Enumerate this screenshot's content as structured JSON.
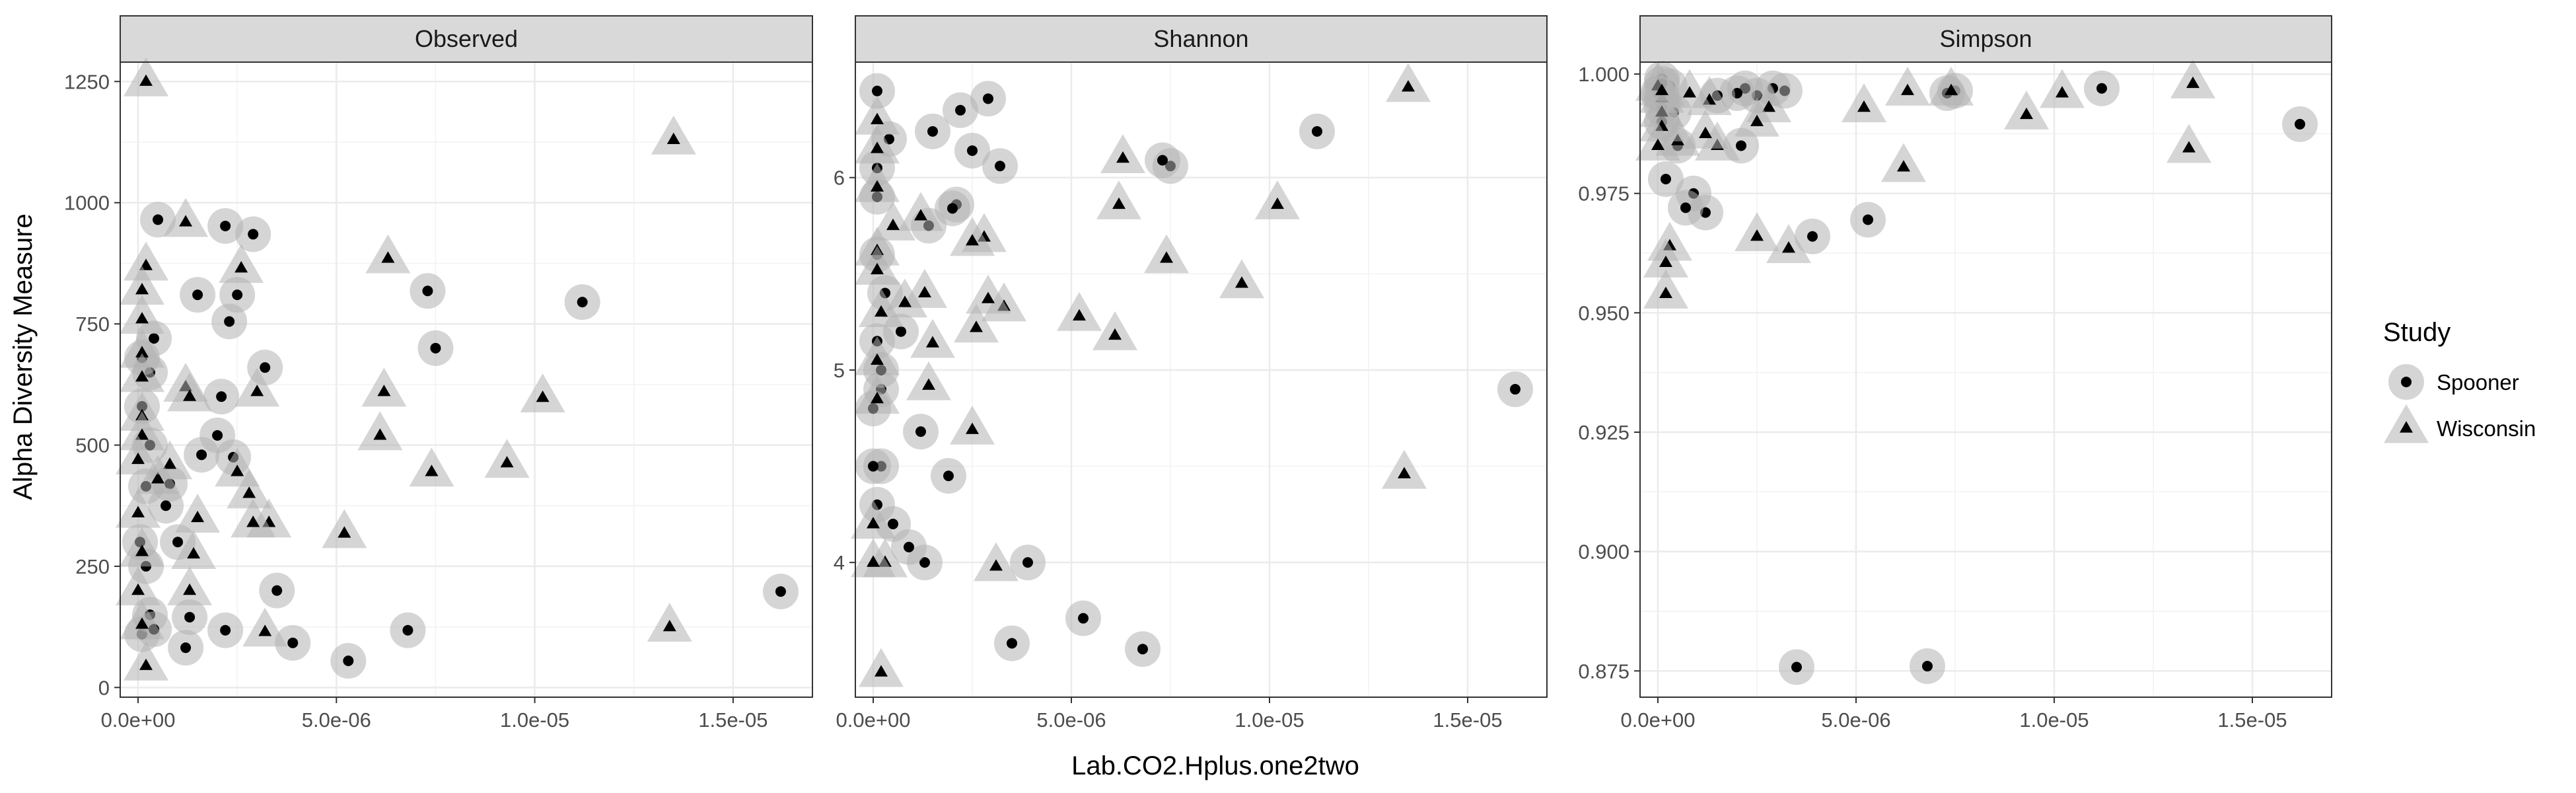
{
  "chart_data": {
    "type": "scatter",
    "facets": [
      "Observed",
      "Shannon",
      "Simpson"
    ],
    "xlabel": "Lab.CO2.Hplus.one2two",
    "ylabel": "Alpha Diversity Measure",
    "xlim": [
      -4.5e-07,
      1.7e-05
    ],
    "x_ticks": [
      0,
      5e-06,
      1e-05,
      1.5e-05
    ],
    "x_tick_labels": [
      "0.0e+00",
      "5.0e-06",
      "1.0e-05",
      "1.5e-05"
    ],
    "grid": true,
    "legend": {
      "title": "Study",
      "position": "right",
      "entries": [
        {
          "name": "Spooner",
          "shape": "circle"
        },
        {
          "name": "Wisconsin",
          "shape": "triangle"
        }
      ]
    },
    "colors": {
      "marker_halo": "#b3b3b3",
      "marker_core": "#000000",
      "strip_fill": "#d9d9d9",
      "grid_major": "#ebebeb",
      "panel_border": "#333333"
    },
    "panels": [
      {
        "facet": "Observed",
        "ylim": [
          -20,
          1290
        ],
        "y_ticks": [
          0,
          250,
          500,
          750,
          1000,
          1250
        ],
        "y_tick_labels": [
          "0",
          "250",
          "500",
          "750",
          "1000",
          "1250"
        ],
        "series": [
          {
            "name": "Spooner",
            "points": [
              [
                1.62e-05,
                198
              ],
              [
                1.12e-05,
                795
              ],
              [
                7.5e-06,
                700
              ],
              [
                7.3e-06,
                818
              ],
              [
                6.8e-06,
                118
              ],
              [
                5.3e-06,
                55
              ],
              [
                3.9e-06,
                92
              ],
              [
                3.5e-06,
                200
              ],
              [
                3.2e-06,
                660
              ],
              [
                2.9e-06,
                935
              ],
              [
                2.5e-06,
                810
              ],
              [
                2.2e-06,
                952
              ],
              [
                2.3e-06,
                755
              ],
              [
                2.1e-06,
                600
              ],
              [
                2e-06,
                520
              ],
              [
                2.2e-06,
                118
              ],
              [
                2.4e-06,
                475
              ],
              [
                1.5e-06,
                810
              ],
              [
                1.6e-06,
                480
              ],
              [
                1.3e-06,
                145
              ],
              [
                1.2e-06,
                82
              ],
              [
                1e-06,
                300
              ],
              [
                5e-07,
                965
              ],
              [
                8e-07,
                420
              ],
              [
                7e-07,
                375
              ],
              [
                4e-07,
                720
              ],
              [
                3e-07,
                650
              ],
              [
                3e-07,
                500
              ],
              [
                2e-07,
                250
              ],
              [
                1e-07,
                110
              ],
              [
                3e-07,
                150
              ],
              [
                4e-07,
                120
              ],
              [
                2e-07,
                415
              ],
              [
                1e-07,
                580
              ],
              [
                1e-07,
                680
              ],
              [
                5e-08,
                300
              ]
            ]
          },
          {
            "name": "Wisconsin",
            "points": [
              [
                1.35e-05,
                1130
              ],
              [
                1.34e-05,
                125
              ],
              [
                1.02e-05,
                598
              ],
              [
                9.3e-06,
                463
              ],
              [
                7.4e-06,
                445
              ],
              [
                6.3e-06,
                885
              ],
              [
                6.2e-06,
                610
              ],
              [
                6.1e-06,
                520
              ],
              [
                5.2e-06,
                318
              ],
              [
                3.3e-06,
                340
              ],
              [
                3e-06,
                610
              ],
              [
                3.2e-06,
                115
              ],
              [
                2.9e-06,
                340
              ],
              [
                2.8e-06,
                400
              ],
              [
                2.6e-06,
                865
              ],
              [
                2.5e-06,
                445
              ],
              [
                1.2e-06,
                960
              ],
              [
                1.5e-06,
                350
              ],
              [
                1.2e-06,
                620
              ],
              [
                1.3e-06,
                600
              ],
              [
                1.3e-06,
                200
              ],
              [
                1.4e-06,
                275
              ],
              [
                8e-07,
                460
              ],
              [
                5e-07,
                430
              ],
              [
                2e-07,
                1250
              ],
              [
                2e-07,
                45
              ],
              [
                2e-07,
                870
              ],
              [
                1e-07,
                820
              ],
              [
                1e-07,
                760
              ],
              [
                1e-07,
                690
              ],
              [
                1e-07,
                640
              ],
              [
                1e-07,
                560
              ],
              [
                1e-07,
                520
              ],
              [
                0,
                470
              ],
              [
                0,
                360
              ],
              [
                1e-07,
                280
              ],
              [
                0,
                200
              ],
              [
                1e-07,
                130
              ]
            ]
          }
        ]
      },
      {
        "facet": "Shannon",
        "ylim": [
          3.3,
          6.6
        ],
        "y_ticks": [
          4,
          5,
          6
        ],
        "y_tick_labels": [
          "4",
          "5",
          "6"
        ],
        "series": [
          {
            "name": "Spooner",
            "points": [
              [
                1.62e-05,
                4.9
              ],
              [
                1.12e-05,
                6.24
              ],
              [
                7.5e-06,
                6.06
              ],
              [
                7.3e-06,
                6.09
              ],
              [
                6.8e-06,
                3.55
              ],
              [
                5.3e-06,
                3.71
              ],
              [
                3.9e-06,
                4.0
              ],
              [
                3.5e-06,
                3.58
              ],
              [
                3.2e-06,
                6.06
              ],
              [
                2.9e-06,
                6.41
              ],
              [
                2.5e-06,
                6.14
              ],
              [
                2.2e-06,
                6.35
              ],
              [
                2.1e-06,
                5.86
              ],
              [
                2e-06,
                5.84
              ],
              [
                1.9e-06,
                4.45
              ],
              [
                1.5e-06,
                6.24
              ],
              [
                1.4e-06,
                5.75
              ],
              [
                1.3e-06,
                4.0
              ],
              [
                1.2e-06,
                4.68
              ],
              [
                9e-07,
                4.08
              ],
              [
                7e-07,
                5.2
              ],
              [
                5e-07,
                4.2
              ],
              [
                4e-07,
                6.2
              ],
              [
                3e-07,
                5.4
              ],
              [
                2e-07,
                4.5
              ],
              [
                2e-07,
                4.9
              ],
              [
                1e-07,
                6.45
              ],
              [
                1e-07,
                5.9
              ],
              [
                1e-07,
                5.6
              ],
              [
                1e-07,
                5.15
              ],
              [
                1e-07,
                4.3
              ],
              [
                0,
                4.8
              ],
              [
                0,
                4.5
              ],
              [
                1e-07,
                6.05
              ],
              [
                2e-07,
                5.0
              ]
            ]
          },
          {
            "name": "Wisconsin",
            "points": [
              [
                1.35e-05,
                6.47
              ],
              [
                1.34e-05,
                4.46
              ],
              [
                1.02e-05,
                5.86
              ],
              [
                9.3e-06,
                5.45
              ],
              [
                7.4e-06,
                5.58
              ],
              [
                6.3e-06,
                6.1
              ],
              [
                6.2e-06,
                5.86
              ],
              [
                6.1e-06,
                5.18
              ],
              [
                5.2e-06,
                5.28
              ],
              [
                3.3e-06,
                5.33
              ],
              [
                3.1e-06,
                3.98
              ],
              [
                2.9e-06,
                5.37
              ],
              [
                2.8e-06,
                5.69
              ],
              [
                2.6e-06,
                5.22
              ],
              [
                2.5e-06,
                5.67
              ],
              [
                2.5e-06,
                4.69
              ],
              [
                1.5e-06,
                5.14
              ],
              [
                1.4e-06,
                4.92
              ],
              [
                1.3e-06,
                5.4
              ],
              [
                1.2e-06,
                5.8
              ],
              [
                8e-07,
                5.35
              ],
              [
                5e-07,
                5.75
              ],
              [
                3e-07,
                4.0
              ],
              [
                2e-07,
                3.43
              ],
              [
                2e-07,
                5.3
              ],
              [
                1e-07,
                6.3
              ],
              [
                1e-07,
                5.95
              ],
              [
                1e-07,
                5.62
              ],
              [
                1e-07,
                5.52
              ],
              [
                1e-07,
                5.05
              ],
              [
                1e-07,
                4.85
              ],
              [
                0,
                4.2
              ],
              [
                0,
                4.0
              ],
              [
                1e-07,
                6.15
              ]
            ]
          }
        ]
      },
      {
        "facet": "Simpson",
        "ylim": [
          0.8695,
          1.0025
        ],
        "y_ticks": [
          0.875,
          0.9,
          0.925,
          0.95,
          0.975,
          1.0
        ],
        "y_tick_labels": [
          "0.875",
          "0.900",
          "0.925",
          "0.950",
          "0.975",
          "1.000"
        ],
        "series": [
          {
            "name": "Spooner",
            "points": [
              [
                1.62e-05,
                0.9895
              ],
              [
                1.12e-05,
                0.997
              ],
              [
                7.5e-06,
                0.9965
              ],
              [
                7.3e-06,
                0.996
              ],
              [
                6.8e-06,
                0.876
              ],
              [
                5.3e-06,
                0.9695
              ],
              [
                3.9e-06,
                0.966
              ],
              [
                3.5e-06,
                0.8758
              ],
              [
                3.2e-06,
                0.9965
              ],
              [
                2.9e-06,
                0.997
              ],
              [
                2.5e-06,
                0.9955
              ],
              [
                2.2e-06,
                0.997
              ],
              [
                2.1e-06,
                0.985
              ],
              [
                2e-06,
                0.996
              ],
              [
                1.5e-06,
                0.9955
              ],
              [
                1.2e-06,
                0.971
              ],
              [
                9e-07,
                0.975
              ],
              [
                7e-07,
                0.972
              ],
              [
                5e-07,
                0.985
              ],
              [
                4e-07,
                0.992
              ],
              [
                3e-07,
                0.9975
              ],
              [
                2e-07,
                0.978
              ],
              [
                1e-07,
                0.999
              ],
              [
                1e-07,
                0.9955
              ],
              [
                1e-07,
                0.993
              ],
              [
                1e-07,
                0.99
              ],
              [
                0,
                0.996
              ],
              [
                1e-07,
                0.998
              ]
            ]
          },
          {
            "name": "Wisconsin",
            "points": [
              [
                1.35e-05,
                0.998
              ],
              [
                1.34e-05,
                0.9845
              ],
              [
                1.02e-05,
                0.996
              ],
              [
                9.3e-06,
                0.9915
              ],
              [
                7.4e-06,
                0.9965
              ],
              [
                6.3e-06,
                0.9965
              ],
              [
                6.2e-06,
                0.9805
              ],
              [
                5.2e-06,
                0.993
              ],
              [
                3.3e-06,
                0.9635
              ],
              [
                2.8e-06,
                0.993
              ],
              [
                2.5e-06,
                0.966
              ],
              [
                2.5e-06,
                0.99
              ],
              [
                1.5e-06,
                0.985
              ],
              [
                1.2e-06,
                0.9875
              ],
              [
                1.3e-06,
                0.9945
              ],
              [
                8e-07,
                0.996
              ],
              [
                5e-07,
                0.986
              ],
              [
                3e-07,
                0.964
              ],
              [
                2e-07,
                0.954
              ],
              [
                2e-07,
                0.9605
              ],
              [
                1e-07,
                0.995
              ],
              [
                1e-07,
                0.992
              ],
              [
                1e-07,
                0.989
              ],
              [
                0,
                0.985
              ],
              [
                0,
                0.9975
              ],
              [
                1e-07,
                0.9965
              ]
            ]
          }
        ]
      }
    ]
  }
}
